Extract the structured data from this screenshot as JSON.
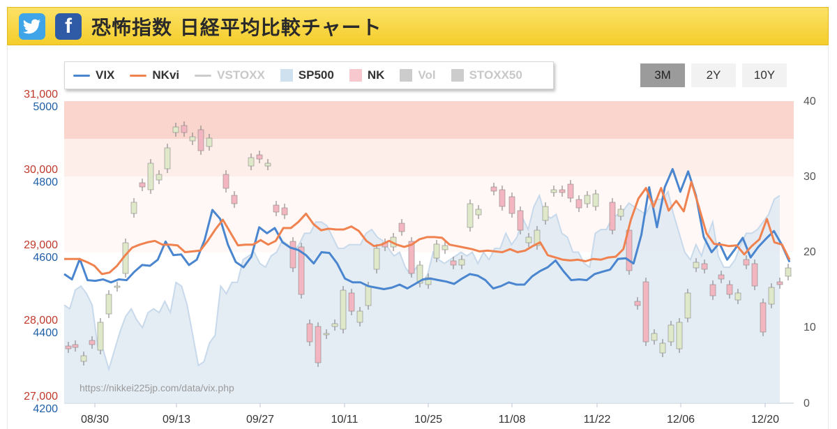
{
  "header": {
    "title": "恐怖指数 日経平均比較チャート",
    "twitter_icon": "twitter-icon",
    "facebook_icon": "facebook-icon",
    "facebook_glyph": "f"
  },
  "legend": {
    "items": [
      {
        "label": "VIX",
        "color": "#4a86cf",
        "kind": "line",
        "enabled": true
      },
      {
        "label": "NKvi",
        "color": "#f0824f",
        "kind": "line",
        "enabled": true
      },
      {
        "label": "VSTOXX",
        "color": "#cccccc",
        "kind": "line",
        "enabled": false
      },
      {
        "label": "SP500",
        "color": "#cfe0ee",
        "kind": "area",
        "enabled": true
      },
      {
        "label": "NK",
        "color": "#f8c8cf",
        "kind": "area",
        "enabled": true
      },
      {
        "label": "Vol",
        "color": "#cccccc",
        "kind": "area",
        "enabled": false
      },
      {
        "label": "STOXX50",
        "color": "#cccccc",
        "kind": "area",
        "enabled": false
      }
    ]
  },
  "range_buttons": [
    {
      "label": "3M",
      "active": true
    },
    {
      "label": "2Y",
      "active": false
    },
    {
      "label": "10Y",
      "active": false
    }
  ],
  "watermark": "https://nikkei225jp.com/data/vix.php",
  "chart_data": {
    "type": "line",
    "x_ticks": [
      "08/30",
      "09/13",
      "09/27",
      "10/11",
      "10/25",
      "11/08",
      "11/22",
      "12/06",
      "12/20"
    ],
    "y_left_nk": {
      "ticks": [
        "31,000",
        "30,000",
        "29,000",
        "28,000",
        "27,000"
      ],
      "range": [
        27000,
        31000
      ],
      "color": "#c0392b"
    },
    "y_left_sp": {
      "ticks": [
        "5000",
        "4800",
        "4600",
        "4400",
        "4200"
      ],
      "range": [
        4200,
        5000
      ],
      "color": "#1f5fa8"
    },
    "y_right": {
      "ticks": [
        "40",
        "30",
        "20",
        "10",
        "0"
      ],
      "range": [
        0,
        40
      ]
    },
    "bands": [
      {
        "from": 35,
        "to": 40,
        "color": "#f9d5cd"
      },
      {
        "from": 30,
        "to": 35,
        "color": "#fdeeea"
      },
      {
        "from": 20,
        "to": 30,
        "color": "#fff8f6"
      }
    ],
    "series": [
      {
        "name": "VIX",
        "color": "#4a86cf",
        "values": [
          17.1,
          16.4,
          19.1,
          16.3,
          16.2,
          16.4,
          16.0,
          16.4,
          16.3,
          17.4,
          18.3,
          18.2,
          19.0,
          21.4,
          19.6,
          19.7,
          18.3,
          19.0,
          21.6,
          25.6,
          24.4,
          21.0,
          18.7,
          18.0,
          19.4,
          23.3,
          22.5,
          23.2,
          21.3,
          20.6,
          20.3,
          19.6,
          18.5,
          20.0,
          19.9,
          18.5,
          16.5,
          16.0,
          16.0,
          15.5,
          15.3,
          15.1,
          15.3,
          15.7,
          15.2,
          15.8,
          16.4,
          16.5,
          16.3,
          16.1,
          15.8,
          16.5,
          17.1,
          16.9,
          16.3,
          15.2,
          15.5,
          16.0,
          15.7,
          15.7,
          16.8,
          17.5,
          18.0,
          18.9,
          17.5,
          16.3,
          16.4,
          16.3,
          17.1,
          17.4,
          17.7,
          19.1,
          19.2,
          18.5,
          22.3,
          28.6,
          23.3,
          28.6,
          31.0,
          28.0,
          30.7,
          27.5,
          22.0,
          20.0,
          21.2,
          19.0,
          20.4,
          21.9,
          19.3,
          20.7,
          21.8,
          22.8,
          21.0,
          18.7
        ]
      },
      {
        "name": "NKvi",
        "color": "#f0824f",
        "values": [
          19.1,
          19.1,
          19.1,
          18.7,
          18.2,
          17.1,
          17.3,
          18.2,
          19.5,
          20.6,
          21.0,
          21.3,
          21.5,
          21.0,
          21.0,
          20.9,
          20.0,
          20.1,
          20.2,
          21.5,
          23.0,
          24.3,
          22.6,
          20.9,
          21.0,
          21.0,
          21.6,
          21.0,
          21.5,
          23.2,
          23.2,
          24.0,
          25.1,
          23.7,
          22.9,
          23.1,
          23.0,
          23.0,
          23.4,
          22.8,
          21.5,
          20.8,
          21.0,
          21.5,
          21.0,
          20.7,
          21.0,
          21.7,
          22.0,
          22.0,
          21.9,
          21.0,
          20.8,
          20.6,
          20.4,
          20.1,
          20.2,
          20.1,
          20.0,
          20.4,
          20.0,
          20.2,
          20.8,
          21.3,
          19.6,
          19.3,
          19.0,
          18.9,
          19.0,
          18.8,
          19.1,
          19.0,
          19.3,
          19.4,
          20.4,
          24.3,
          27.1,
          28.5,
          26.0,
          28.5,
          25.5,
          26.8,
          25.4,
          29.3,
          26.0,
          22.5,
          21.1,
          21.0,
          20.8,
          20.9,
          19.7,
          20.8,
          21.7,
          24.4,
          21.3,
          21.0,
          19.0
        ]
      },
      {
        "name": "SP500",
        "color": "#cfe0ee",
        "values": [
          4460,
          4450,
          4500,
          4510,
          4490,
          4460,
          4350,
          4340,
          4290,
          4340,
          4390,
          4430,
          4450,
          4420,
          4400,
          4440,
          4450,
          4440,
          4470,
          4440,
          4520,
          4510,
          4460,
          4380,
          4300,
          4310,
          4360,
          4380,
          4510,
          4490,
          4520,
          4520,
          4580,
          4590,
          4600,
          4570,
          4560,
          4590,
          4600,
          4630,
          4620,
          4600,
          4620,
          4650,
          4650,
          4680,
          4680,
          4670,
          4640,
          4610,
          4610,
          4620,
          4620,
          4620,
          4650,
          4660,
          4640,
          4630,
          4610,
          4590,
          4600,
          4560,
          4540,
          4560,
          4520,
          4540,
          4600,
          4580,
          4570,
          4580,
          4590,
          4600,
          4590,
          4600,
          4570,
          4600,
          4580,
          4610,
          4610,
          4650,
          4620,
          4640,
          4690,
          4660,
          4720,
          4750,
          4700,
          4690,
          4700,
          4650,
          4640,
          4600,
          4600,
          4570,
          4560,
          4650,
          4660,
          4660,
          4690,
          4700,
          4710,
          4730,
          4720,
          4710,
          4700,
          4730,
          4740,
          4740,
          4760,
          4700,
          4650,
          4600,
          4580,
          4620,
          4590,
          4640,
          4680,
          4590,
          4560,
          4560,
          4580,
          4620,
          4650,
          4650,
          4660,
          4680,
          4700,
          4740,
          4750
        ]
      }
    ],
    "candles_right_scale": true
  }
}
